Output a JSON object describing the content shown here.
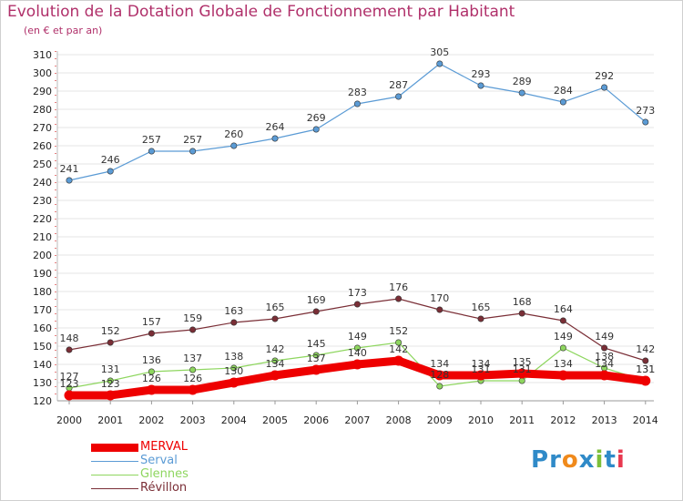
{
  "header": {
    "title": "Evolution de la Dotation Globale de Fonctionnement par Habitant",
    "subtitle": "(en € et par an)"
  },
  "colors": {
    "title": "#b0306a",
    "axis": "#bbbbbb",
    "axis_dashes": "#cc0000",
    "grid": "#e6e6e6"
  },
  "chart_data": {
    "type": "line",
    "title": "Evolution de la Dotation Globale de Fonctionnement par Habitant",
    "subtitle": "(en € et par an)",
    "xlabel": "",
    "ylabel": "",
    "x": [
      "2000",
      "2001",
      "2002",
      "2003",
      "2004",
      "2005",
      "2006",
      "2007",
      "2008",
      "2009",
      "2010",
      "2011",
      "2012",
      "2013",
      "2014"
    ],
    "ylim": [
      120,
      310
    ],
    "yticks": [
      120,
      130,
      140,
      150,
      160,
      170,
      180,
      190,
      200,
      210,
      220,
      230,
      240,
      250,
      260,
      270,
      280,
      290,
      300,
      310
    ],
    "grid": true,
    "legend_position": "bottom-left",
    "series": [
      {
        "name": "Serval",
        "color": "#5b9bd5",
        "values": [
          241,
          246,
          257,
          257,
          260,
          264,
          269,
          283,
          287,
          305,
          293,
          289,
          284,
          292,
          273
        ]
      },
      {
        "name": "Glennes",
        "color": "#8ed65f",
        "values": [
          127,
          131,
          136,
          137,
          138,
          142,
          145,
          149,
          152,
          128,
          131,
          131,
          149,
          138,
          131
        ]
      },
      {
        "name": "Révillon",
        "color": "#7a2e36",
        "values": [
          148,
          152,
          157,
          159,
          163,
          165,
          169,
          173,
          176,
          170,
          165,
          168,
          164,
          149,
          142
        ]
      },
      {
        "name": "MERVAL",
        "color": "#ee0000",
        "values": [
          123,
          123,
          126,
          126,
          130,
          134,
          137,
          140,
          142,
          134,
          134,
          135,
          134,
          134,
          131
        ]
      }
    ]
  },
  "legend": {
    "items": [
      {
        "name": "MERVAL",
        "color": "#ee0000"
      },
      {
        "name": "Serval",
        "color": "#5b9bd5"
      },
      {
        "name": "Glennes",
        "color": "#8ed65f"
      },
      {
        "name": "Révillon",
        "color": "#7a2e36"
      }
    ]
  },
  "logo": {
    "text": "Proxiti",
    "letters": [
      {
        "ch": "P",
        "color": "#2f8ac8"
      },
      {
        "ch": "r",
        "color": "#2f8ac8"
      },
      {
        "ch": "o",
        "color": "#f08a1c"
      },
      {
        "ch": "x",
        "color": "#2f8ac8"
      },
      {
        "ch": "i",
        "color": "#7cbf3a"
      },
      {
        "ch": "t",
        "color": "#2f8ac8"
      },
      {
        "ch": "i",
        "color": "#e8384f"
      }
    ]
  }
}
